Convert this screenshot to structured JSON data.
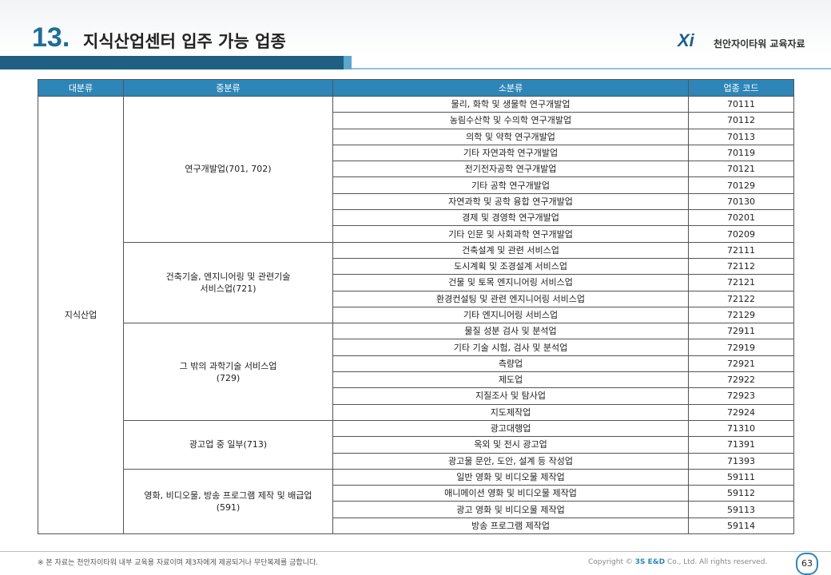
{
  "header": {
    "number": "13.",
    "title": "지식산업센터 입주 가능 업종",
    "logo": "Xi",
    "logo_text": "천안자이타워 교육자료"
  },
  "table": {
    "columns": [
      "대분류",
      "중분류",
      "소분류",
      "업종 코드"
    ],
    "major": "지식산업",
    "groups": [
      {
        "lines": [
          "연구개발업(701, 702)"
        ],
        "rows": [
          [
            "물리, 화학 및 생물학 연구개발업",
            "70111"
          ],
          [
            "농림수산학 및 수의학 연구개발업",
            "70112"
          ],
          [
            "의학 및 약학 연구개발업",
            "70113"
          ],
          [
            "기타 자연과학 연구개발업",
            "70119"
          ],
          [
            "전기전자공학 연구개발업",
            "70121"
          ],
          [
            "기타 공학 연구개발업",
            "70129"
          ],
          [
            "자연과학 및 공학 융합 연구개발업",
            "70130"
          ],
          [
            "경제 및 경영학 연구개발업",
            "70201"
          ],
          [
            "기타 인문 및 사회과학 연구개발업",
            "70209"
          ]
        ]
      },
      {
        "lines": [
          "건축기술, 엔지니어링 및 관련기술",
          "서비스업(721)"
        ],
        "rows": [
          [
            "건축설계 및 관련 서비스업",
            "72111"
          ],
          [
            "도시계획 및 조경설계 서비스업",
            "72112"
          ],
          [
            "건물 및 토목 엔지니어링 서비스업",
            "72121"
          ],
          [
            "환경컨설팅 및 관련 엔지니어링 서비스업",
            "72122"
          ],
          [
            "기타 엔지니어링 서비스업",
            "72129"
          ]
        ]
      },
      {
        "lines": [
          "그 밖의 과학기술 서비스업",
          "(729)"
        ],
        "rows": [
          [
            "물질 성분 검사 및 분석업",
            "72911"
          ],
          [
            "기타 기술 시험, 검사 및 분석업",
            "72919"
          ],
          [
            "측량업",
            "72921"
          ],
          [
            "제도업",
            "72922"
          ],
          [
            "지질조사 및 탐사업",
            "72923"
          ],
          [
            "지도제작업",
            "72924"
          ]
        ]
      },
      {
        "lines": [
          "광고업 중 일부(713)"
        ],
        "rows": [
          [
            "광고대행업",
            "71310"
          ],
          [
            "옥외 및 전시 광고업",
            "71391"
          ],
          [
            "광고물 문안, 도안, 설계 등 작성업",
            "71393"
          ]
        ]
      },
      {
        "lines": [
          "영화, 비디오물, 방송 프로그램 제작 및 배급업",
          "(591)"
        ],
        "rows": [
          [
            "일반 영화 및 비디오물 제작업",
            "59111"
          ],
          [
            "애니메이션 영화 및 비디오물 제작업",
            "59112"
          ],
          [
            "광고 영화 및 비디오물 제작업",
            "59113"
          ],
          [
            "방송 프로그램 제작업",
            "59114"
          ]
        ]
      }
    ]
  },
  "footer": {
    "note": "※ 본 자료는 천안자이타워 내부 교육용 자료이며 제3자에게 제공되거나 무단복제를 금합니다.",
    "copyright": "Copyright ©",
    "company": "3S E&D",
    "rights": "Co., Ltd. All rights reserved.",
    "page": "63"
  }
}
